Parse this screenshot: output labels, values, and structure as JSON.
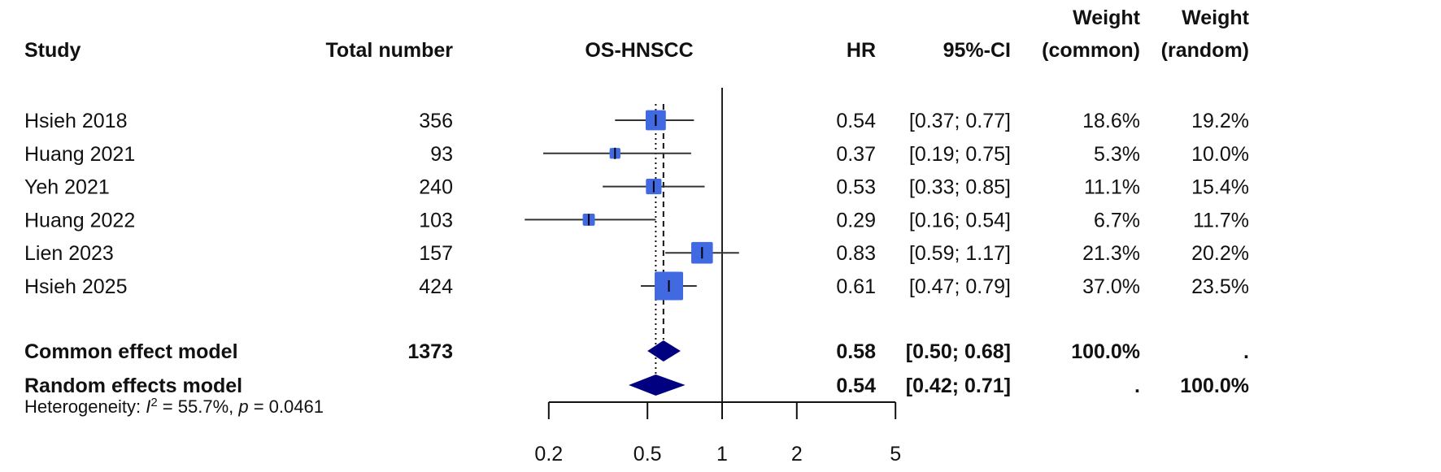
{
  "chart_data": {
    "type": "forest",
    "title": "OS-HNSCC",
    "headers": {
      "study": "Study",
      "total": "Total number",
      "plot": "OS-HNSCC",
      "hr": "HR",
      "ci": "95%-CI",
      "weight_common_1": "Weight",
      "weight_common_2": "(common)",
      "weight_random_1": "Weight",
      "weight_random_2": "(random)"
    },
    "studies": [
      {
        "name": "Hsieh 2018",
        "total": "356",
        "hr": 0.54,
        "lo": 0.37,
        "hi": 0.77,
        "hr_text": "0.54",
        "ci_text": "[0.37; 0.77]",
        "w_common": "18.6%",
        "w_random": "19.2%",
        "wc": 18.6
      },
      {
        "name": "Huang 2021",
        "total": "93",
        "hr": 0.37,
        "lo": 0.19,
        "hi": 0.75,
        "hr_text": "0.37",
        "ci_text": "[0.19; 0.75]",
        "w_common": "5.3%",
        "w_random": "10.0%",
        "wc": 5.3
      },
      {
        "name": "Yeh 2021",
        "total": "240",
        "hr": 0.53,
        "lo": 0.33,
        "hi": 0.85,
        "hr_text": "0.53",
        "ci_text": "[0.33; 0.85]",
        "w_common": "11.1%",
        "w_random": "15.4%",
        "wc": 11.1
      },
      {
        "name": "Huang 2022",
        "total": "103",
        "hr": 0.29,
        "lo": 0.16,
        "hi": 0.54,
        "hr_text": "0.29",
        "ci_text": "[0.16; 0.54]",
        "w_common": "6.7%",
        "w_random": "11.7%",
        "wc": 6.7
      },
      {
        "name": "Lien 2023",
        "total": "157",
        "hr": 0.83,
        "lo": 0.59,
        "hi": 1.17,
        "hr_text": "0.83",
        "ci_text": "[0.59; 1.17]",
        "w_common": "21.3%",
        "w_random": "20.2%",
        "wc": 21.3
      },
      {
        "name": "Hsieh 2025",
        "total": "424",
        "hr": 0.61,
        "lo": 0.47,
        "hi": 0.79,
        "hr_text": "0.61",
        "ci_text": "[0.47; 0.79]",
        "w_common": "37.0%",
        "w_random": "23.5%",
        "wc": 37.0
      }
    ],
    "models": [
      {
        "name": "Common effect model",
        "total": "1373",
        "hr": 0.58,
        "lo": 0.5,
        "hi": 0.68,
        "hr_text": "0.58",
        "ci_text": "[0.50; 0.68]",
        "w_common": "100.0%",
        "w_random": ".",
        "line": "dashed"
      },
      {
        "name": "Random effects model",
        "total": "",
        "hr": 0.54,
        "lo": 0.42,
        "hi": 0.71,
        "hr_text": "0.54",
        "ci_text": "[0.42; 0.71]",
        "w_common": ".",
        "w_random": "100.0%",
        "line": "dotted"
      }
    ],
    "heterogeneity": {
      "prefix": "Heterogeneity: ",
      "i2_label": "I",
      "i2_sup": "2",
      "i2_value": " = 55.7%, ",
      "p_label": "p",
      "p_value": " = 0.0461"
    },
    "x_scale": "log",
    "xlim": [
      0.2,
      5
    ],
    "x_ticks": [
      0.2,
      0.5,
      1,
      2,
      5
    ],
    "x_tick_labels": [
      "0.2",
      "0.5",
      "1",
      "2",
      "5"
    ],
    "reference_line": 1,
    "colors": {
      "square": "#4169E1",
      "diamond": "#000080",
      "ci": "#000000"
    }
  }
}
